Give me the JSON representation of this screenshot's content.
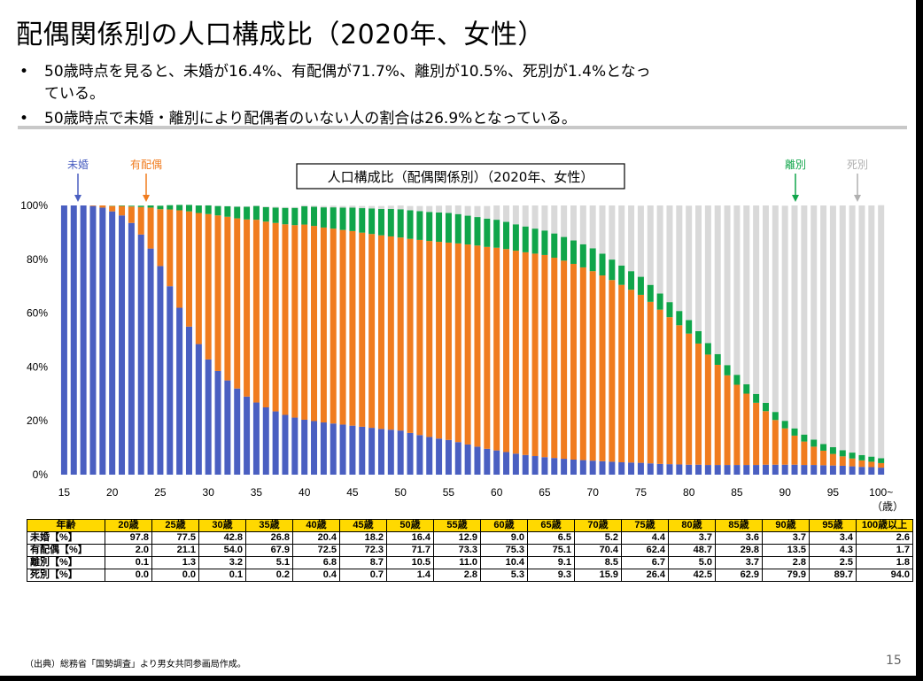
{
  "slide": {
    "title": "配偶関係別の人口構成比（2020年、女性）",
    "bullets": [
      "50歳時点を見ると、未婚が16.4%、有配偶が71.7%、離別が10.5%、死別が1.4%となっ",
      "ている。",
      "50歳時点で未婚・離別により配偶者のいない人の割合は26.9%となっている。"
    ],
    "bullet_marker": "•",
    "footnote": "（出典）総務省「国勢調査」より男女共同参画局作成。",
    "page_number": "15"
  },
  "colors": {
    "unmarried": "#4a5fc1",
    "married": "#f07c1f",
    "divorced": "#10a54a",
    "widowed": "#d9d9d9"
  },
  "chart_data": {
    "type": "bar",
    "stacked": true,
    "title": "人口構成比（配偶関係別）（2020年、女性）",
    "x_tick_labels": [
      "15",
      "20",
      "25",
      "30",
      "35",
      "40",
      "45",
      "50",
      "55",
      "60",
      "65",
      "70",
      "75",
      "80",
      "85",
      "90",
      "95",
      "100~"
    ],
    "x_unit": "（歳）",
    "y_tick_labels": [
      "0%",
      "20%",
      "40%",
      "60%",
      "80%",
      "100%"
    ],
    "ylim": [
      0,
      100
    ],
    "legend": [
      {
        "name": "未婚",
        "key": "unmarried",
        "position": "top-left"
      },
      {
        "name": "有配偶",
        "key": "married",
        "position": "top-left"
      },
      {
        "name": "離別",
        "key": "divorced",
        "position": "top-right"
      },
      {
        "name": "死別",
        "key": "widowed",
        "position": "top-right"
      }
    ],
    "series_order": [
      "unmarried",
      "married",
      "divorced",
      "widowed"
    ],
    "x": [
      15,
      16,
      17,
      18,
      19,
      20,
      21,
      22,
      23,
      24,
      25,
      26,
      27,
      28,
      29,
      30,
      31,
      32,
      33,
      34,
      35,
      36,
      37,
      38,
      39,
      40,
      41,
      42,
      43,
      44,
      45,
      46,
      47,
      48,
      49,
      50,
      51,
      52,
      53,
      54,
      55,
      56,
      57,
      58,
      59,
      60,
      61,
      62,
      63,
      64,
      65,
      66,
      67,
      68,
      69,
      70,
      71,
      72,
      73,
      74,
      75,
      76,
      77,
      78,
      79,
      80,
      81,
      82,
      83,
      84,
      85,
      86,
      87,
      88,
      89,
      90,
      91,
      92,
      93,
      94,
      95,
      96,
      97,
      98,
      99,
      100
    ],
    "series": {
      "unmarried": [
        100,
        100,
        100,
        99.8,
        99.2,
        97.8,
        96.3,
        93.5,
        89.2,
        84.0,
        77.5,
        70,
        62,
        55,
        48.5,
        42.8,
        38.5,
        35,
        32,
        29,
        26.8,
        25,
        23.5,
        22.2,
        21.2,
        20.4,
        19.9,
        19.4,
        19,
        18.6,
        18.2,
        17.8,
        17.4,
        17,
        16.7,
        16.4,
        15.5,
        14.7,
        14,
        13.4,
        12.9,
        12.1,
        11.2,
        10.4,
        9.6,
        9,
        8.4,
        7.8,
        7.3,
        6.9,
        6.5,
        6.2,
        5.9,
        5.6,
        5.4,
        5.2,
        5,
        4.8,
        4.6,
        4.5,
        4.4,
        4.2,
        4,
        3.9,
        3.8,
        3.7,
        3.7,
        3.6,
        3.6,
        3.6,
        3.6,
        3.6,
        3.6,
        3.7,
        3.7,
        3.7,
        3.7,
        3.6,
        3.6,
        3.5,
        3.4,
        3.3,
        3.1,
        2.9,
        2.8,
        2.6
      ],
      "married": [
        0,
        0,
        0,
        0.2,
        0.8,
        2,
        3.5,
        6.1,
        10.2,
        15.2,
        21.1,
        28.5,
        36.2,
        42.8,
        48.7,
        54,
        57.8,
        60.8,
        63.2,
        65.8,
        67.9,
        69,
        70,
        70.8,
        71.5,
        72.5,
        72.5,
        72.4,
        72.4,
        72.3,
        72.3,
        72.1,
        72,
        71.9,
        71.8,
        71.7,
        72.1,
        72.5,
        72.8,
        73.1,
        73.3,
        73.8,
        74.3,
        74.7,
        75,
        75.3,
        75.4,
        75.4,
        75.3,
        75.2,
        75.1,
        74.4,
        73.6,
        72.7,
        71.6,
        70.4,
        69,
        67.5,
        65.9,
        64.2,
        62.4,
        60,
        57.3,
        54.6,
        51.7,
        48.7,
        45,
        41,
        37.2,
        33.3,
        29.8,
        26.5,
        23.1,
        19.9,
        16.6,
        13.5,
        10.8,
        8.7,
        6.8,
        5.4,
        4.3,
        3.5,
        2.9,
        2.4,
        2,
        1.7
      ],
      "divorced": [
        0,
        0,
        0,
        0,
        0,
        0.1,
        0.2,
        0.3,
        0.5,
        0.8,
        1.3,
        1.6,
        2,
        2.4,
        2.8,
        3.2,
        3.5,
        3.9,
        4.3,
        4.7,
        5.1,
        5.4,
        5.7,
        6.1,
        6.4,
        6.8,
        7.1,
        7.5,
        7.9,
        8.3,
        8.7,
        9.1,
        9.5,
        9.8,
        10.2,
        10.5,
        10.6,
        10.7,
        10.8,
        10.9,
        11,
        10.9,
        10.7,
        10.6,
        10.5,
        10.4,
        10.1,
        9.8,
        9.6,
        9.3,
        9.1,
        9,
        8.8,
        8.7,
        8.6,
        8.5,
        8.1,
        7.6,
        7.2,
        6.9,
        6.7,
        6.3,
        6,
        5.6,
        5.3,
        5,
        4.6,
        4.3,
        4,
        3.8,
        3.7,
        3.5,
        3.3,
        3.1,
        3,
        2.8,
        2.7,
        2.6,
        2.6,
        2.5,
        2.5,
        2.3,
        2.2,
        2,
        1.9,
        1.8
      ],
      "widowed": [
        0,
        0,
        0,
        0,
        0,
        0,
        0,
        0,
        0,
        0,
        0,
        0,
        0,
        0,
        0,
        0.1,
        0.1,
        0.1,
        0.2,
        0.2,
        0.2,
        0.2,
        0.3,
        0.3,
        0.3,
        0.4,
        0.4,
        0.5,
        0.6,
        0.6,
        0.7,
        0.8,
        0.9,
        1.1,
        1.2,
        1.4,
        1.6,
        1.9,
        2.2,
        2.5,
        2.8,
        3.2,
        3.6,
        4.1,
        4.7,
        5.3,
        6.1,
        7,
        7.8,
        8.6,
        9.3,
        10.4,
        11.7,
        13,
        14.4,
        15.9,
        17.9,
        20.1,
        22.3,
        24.4,
        26.4,
        29.5,
        32.7,
        35.9,
        39.2,
        42.5,
        46.7,
        51.1,
        55.2,
        59.3,
        62.9,
        66.4,
        70,
        73.3,
        76.7,
        79.9,
        82.8,
        85.1,
        87,
        88.6,
        89.7,
        90.9,
        91.8,
        92.7,
        93.3,
        94
      ]
    }
  },
  "table": {
    "header": [
      "年齢",
      "20歳",
      "25歳",
      "30歳",
      "35歳",
      "40歳",
      "45歳",
      "50歳",
      "55歳",
      "60歳",
      "65歳",
      "70歳",
      "75歳",
      "80歳",
      "85歳",
      "90歳",
      "95歳",
      "100歳以上"
    ],
    "rows": [
      {
        "label": "未婚【%】",
        "values": [
          "97.8",
          "77.5",
          "42.8",
          "26.8",
          "20.4",
          "18.2",
          "16.4",
          "12.9",
          "9.0",
          "6.5",
          "5.2",
          "4.4",
          "3.7",
          "3.6",
          "3.7",
          "3.4",
          "2.6"
        ]
      },
      {
        "label": "有配偶【%】",
        "values": [
          "2.0",
          "21.1",
          "54.0",
          "67.9",
          "72.5",
          "72.3",
          "71.7",
          "73.3",
          "75.3",
          "75.1",
          "70.4",
          "62.4",
          "48.7",
          "29.8",
          "13.5",
          "4.3",
          "1.7"
        ]
      },
      {
        "label": "離別【%】",
        "values": [
          "0.1",
          "1.3",
          "3.2",
          "5.1",
          "6.8",
          "8.7",
          "10.5",
          "11.0",
          "10.4",
          "9.1",
          "8.5",
          "6.7",
          "5.0",
          "3.7",
          "2.8",
          "2.5",
          "1.8"
        ]
      },
      {
        "label": "死別【%】",
        "values": [
          "0.0",
          "0.0",
          "0.1",
          "0.2",
          "0.4",
          "0.7",
          "1.4",
          "2.8",
          "5.3",
          "9.3",
          "15.9",
          "26.4",
          "42.5",
          "62.9",
          "79.9",
          "89.7",
          "94.0"
        ]
      }
    ]
  }
}
